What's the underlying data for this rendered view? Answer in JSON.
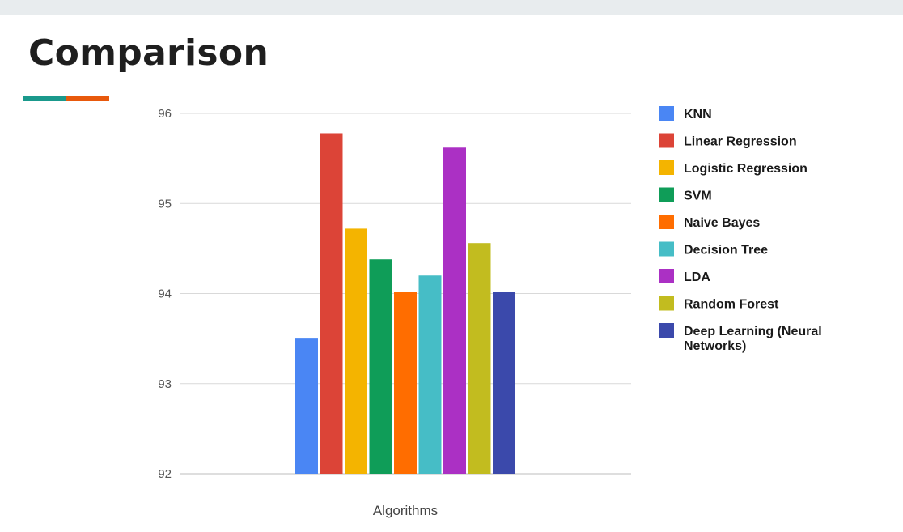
{
  "slide": {
    "title": "Comparison",
    "accent_colors": [
      "#1a998c",
      "#e8590c"
    ]
  },
  "chart_data": {
    "type": "bar",
    "title": "",
    "xlabel": "Algorithms",
    "ylabel": "",
    "ylim": [
      92,
      96
    ],
    "yticks": [
      92,
      93,
      94,
      95,
      96
    ],
    "grid": true,
    "legend_position": "right",
    "categories": [
      "Algorithms"
    ],
    "series": [
      {
        "name": "KNN",
        "values": [
          93.5
        ],
        "color": "#4a86f4"
      },
      {
        "name": "Linear Regression",
        "values": [
          95.78
        ],
        "color": "#dc4437"
      },
      {
        "name": "Logistic Regression",
        "values": [
          94.72
        ],
        "color": "#f4b400"
      },
      {
        "name": "SVM",
        "values": [
          94.38
        ],
        "color": "#0f9d58"
      },
      {
        "name": "Naive Bayes",
        "values": [
          94.02
        ],
        "color": "#ff6d00"
      },
      {
        "name": "Decision Tree",
        "values": [
          94.2
        ],
        "color": "#46bdc6"
      },
      {
        "name": "LDA",
        "values": [
          95.62
        ],
        "color": "#ab30c4"
      },
      {
        "name": "Random Forest",
        "values": [
          94.56
        ],
        "color": "#c2bc1f"
      },
      {
        "name": "Deep Learning (Neural Networks)",
        "values": [
          94.02
        ],
        "color": "#3b49ab"
      }
    ]
  }
}
